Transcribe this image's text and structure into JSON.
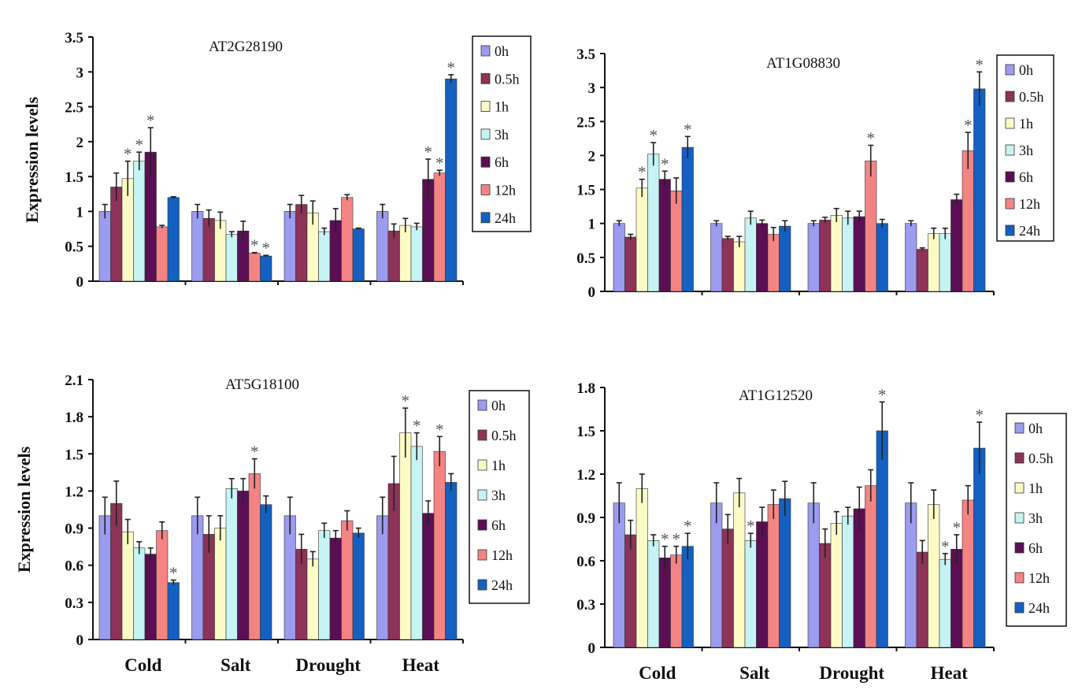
{
  "figure": {
    "panels": [
      "AT2G28190",
      "AT1G08830",
      "AT5G18100",
      "AT1G12520"
    ],
    "ylabel": "Expression levels",
    "categories": [
      "Cold",
      "Salt",
      "Drought",
      "Heat"
    ]
  },
  "series_colors": {
    "0h": "#9b9bf0",
    "0.5h": "#8c3357",
    "1h": "#fcfbc6",
    "3h": "#c6f3f3",
    "6h": "#5b0e54",
    "12h": "#f48484",
    "24h": "#1460c0"
  },
  "chart_data": [
    {
      "type": "bar",
      "title": "AT2G28190",
      "ylabel": "Expression levels",
      "xlabel": "",
      "categories": [
        "Cold",
        "Salt",
        "Drought",
        "Heat"
      ],
      "ylim": [
        0,
        3.5
      ],
      "yticks": [
        "0",
        "0.5",
        "1",
        "1.5",
        "2",
        "2.5",
        "3",
        "3.5"
      ],
      "legend": "top-right",
      "series": [
        {
          "name": "0h",
          "values": [
            1.0,
            1.0,
            1.0,
            1.0
          ],
          "errors": [
            0.1,
            0.1,
            0.1,
            0.1
          ],
          "significant": [
            false,
            false,
            false,
            false
          ]
        },
        {
          "name": "0.5h",
          "values": [
            1.35,
            0.9,
            1.1,
            0.72
          ],
          "errors": [
            0.2,
            0.12,
            0.13,
            0.1
          ],
          "significant": [
            false,
            false,
            false,
            false
          ]
        },
        {
          "name": "1h",
          "values": [
            1.47,
            0.87,
            0.98,
            0.8
          ],
          "errors": [
            0.25,
            0.12,
            0.17,
            0.1
          ],
          "significant": [
            true,
            false,
            false,
            false
          ]
        },
        {
          "name": "3h",
          "values": [
            1.72,
            0.67,
            0.71,
            0.78
          ],
          "errors": [
            0.13,
            0.04,
            0.05,
            0.05
          ],
          "significant": [
            true,
            false,
            false,
            false
          ]
        },
        {
          "name": "6h",
          "values": [
            1.85,
            0.72,
            0.87,
            1.46
          ],
          "errors": [
            0.35,
            0.14,
            0.17,
            0.29
          ],
          "significant": [
            true,
            false,
            false,
            true
          ]
        },
        {
          "name": "12h",
          "values": [
            0.78,
            0.4,
            1.2,
            1.55
          ],
          "errors": [
            0.02,
            0.01,
            0.04,
            0.04
          ],
          "significant": [
            false,
            true,
            false,
            true
          ]
        },
        {
          "name": "24h",
          "values": [
            1.2,
            0.36,
            0.75,
            2.9
          ],
          "errors": [
            0.01,
            0.01,
            0.01,
            0.06
          ],
          "significant": [
            false,
            true,
            false,
            true
          ]
        }
      ]
    },
    {
      "type": "bar",
      "title": "AT1G08830",
      "ylabel": "",
      "xlabel": "",
      "categories": [
        "Cold",
        "Salt",
        "Drought",
        "Heat"
      ],
      "ylim": [
        0,
        3.5
      ],
      "yticks": [
        "0",
        "0.5",
        "1",
        "1.5",
        "2",
        "2.5",
        "3",
        "3.5"
      ],
      "legend": "top-right",
      "series": [
        {
          "name": "0h",
          "values": [
            1.0,
            1.0,
            1.0,
            1.0
          ],
          "errors": [
            0.04,
            0.04,
            0.04,
            0.04
          ],
          "significant": [
            false,
            false,
            false,
            false
          ]
        },
        {
          "name": "0.5h",
          "values": [
            0.8,
            0.78,
            1.05,
            0.62
          ],
          "errors": [
            0.04,
            0.03,
            0.04,
            0.02
          ],
          "significant": [
            false,
            false,
            false,
            false
          ]
        },
        {
          "name": "1h",
          "values": [
            1.52,
            0.73,
            1.12,
            0.85
          ],
          "errors": [
            0.13,
            0.08,
            0.1,
            0.08
          ],
          "significant": [
            true,
            false,
            false,
            false
          ]
        },
        {
          "name": "3h",
          "values": [
            2.02,
            1.08,
            1.08,
            0.85
          ],
          "errors": [
            0.17,
            0.1,
            0.1,
            0.08
          ],
          "significant": [
            true,
            false,
            false,
            false
          ]
        },
        {
          "name": "6h",
          "values": [
            1.65,
            1.0,
            1.1,
            1.35
          ],
          "errors": [
            0.12,
            0.05,
            0.08,
            0.08
          ],
          "significant": [
            true,
            false,
            false,
            false
          ]
        },
        {
          "name": "12h",
          "values": [
            1.48,
            0.84,
            1.92,
            2.07
          ],
          "errors": [
            0.19,
            0.1,
            0.23,
            0.27
          ],
          "significant": [
            false,
            false,
            true,
            true
          ]
        },
        {
          "name": "24h",
          "values": [
            2.12,
            0.96,
            1.0,
            2.98
          ],
          "errors": [
            0.16,
            0.08,
            0.06,
            0.25
          ],
          "significant": [
            true,
            false,
            false,
            true
          ]
        }
      ]
    },
    {
      "type": "bar",
      "title": "AT5G18100",
      "ylabel": "Expression levels",
      "xlabel": "",
      "categories": [
        "Cold",
        "Salt",
        "Drought",
        "Heat"
      ],
      "ylim": [
        0,
        2.1
      ],
      "yticks": [
        "0",
        "0.3",
        "0.6",
        "0.9",
        "1.2",
        "1.5",
        "1.8",
        "2.1"
      ],
      "legend": "top-right",
      "series": [
        {
          "name": "0h",
          "values": [
            1.0,
            1.0,
            1.0,
            1.0
          ],
          "errors": [
            0.15,
            0.15,
            0.15,
            0.15
          ],
          "significant": [
            false,
            false,
            false,
            false
          ]
        },
        {
          "name": "0.5h",
          "values": [
            1.1,
            0.85,
            0.73,
            1.26
          ],
          "errors": [
            0.18,
            0.15,
            0.12,
            0.22
          ],
          "significant": [
            false,
            false,
            false,
            false
          ]
        },
        {
          "name": "1h",
          "values": [
            0.87,
            0.9,
            0.65,
            1.67
          ],
          "errors": [
            0.1,
            0.1,
            0.06,
            0.2
          ],
          "significant": [
            false,
            false,
            false,
            true
          ]
        },
        {
          "name": "3h",
          "values": [
            0.74,
            1.22,
            0.88,
            1.56
          ],
          "errors": [
            0.05,
            0.08,
            0.06,
            0.11
          ],
          "significant": [
            false,
            false,
            false,
            true
          ]
        },
        {
          "name": "6h",
          "values": [
            0.69,
            1.2,
            0.82,
            1.02
          ],
          "errors": [
            0.05,
            0.1,
            0.06,
            0.1
          ],
          "significant": [
            false,
            false,
            false,
            false
          ]
        },
        {
          "name": "12h",
          "values": [
            0.88,
            1.34,
            0.96,
            1.52
          ],
          "errors": [
            0.07,
            0.12,
            0.08,
            0.12
          ],
          "significant": [
            false,
            true,
            false,
            true
          ]
        },
        {
          "name": "24h",
          "values": [
            0.46,
            1.09,
            0.86,
            1.27
          ],
          "errors": [
            0.02,
            0.07,
            0.04,
            0.07
          ],
          "significant": [
            true,
            false,
            false,
            false
          ]
        }
      ]
    },
    {
      "type": "bar",
      "title": "AT1G12520",
      "ylabel": "",
      "xlabel": "",
      "categories": [
        "Cold",
        "Salt",
        "Drought",
        "Heat"
      ],
      "ylim": [
        0,
        1.8
      ],
      "yticks": [
        "0",
        "0.3",
        "0.6",
        "0.9",
        "1.2",
        "1.5",
        "1.8"
      ],
      "legend": "right",
      "series": [
        {
          "name": "0h",
          "values": [
            1.0,
            1.0,
            1.0,
            1.0
          ],
          "errors": [
            0.14,
            0.14,
            0.14,
            0.14
          ],
          "significant": [
            false,
            false,
            false,
            false
          ]
        },
        {
          "name": "0.5h",
          "values": [
            0.78,
            0.82,
            0.72,
            0.66
          ],
          "errors": [
            0.1,
            0.1,
            0.1,
            0.08
          ],
          "significant": [
            false,
            false,
            false,
            false
          ]
        },
        {
          "name": "1h",
          "values": [
            1.1,
            1.07,
            0.86,
            0.99
          ],
          "errors": [
            0.1,
            0.1,
            0.08,
            0.1
          ],
          "significant": [
            false,
            false,
            false,
            false
          ]
        },
        {
          "name": "3h",
          "values": [
            0.74,
            0.74,
            0.91,
            0.61
          ],
          "errors": [
            0.04,
            0.05,
            0.06,
            0.04
          ],
          "significant": [
            false,
            true,
            false,
            true
          ]
        },
        {
          "name": "6h",
          "values": [
            0.62,
            0.87,
            0.96,
            0.68
          ],
          "errors": [
            0.08,
            0.1,
            0.15,
            0.1
          ],
          "significant": [
            true,
            false,
            false,
            true
          ]
        },
        {
          "name": "12h",
          "values": [
            0.64,
            0.99,
            1.12,
            1.02
          ],
          "errors": [
            0.06,
            0.1,
            0.11,
            0.1
          ],
          "significant": [
            true,
            false,
            false,
            false
          ]
        },
        {
          "name": "24h",
          "values": [
            0.7,
            1.03,
            1.5,
            1.38
          ],
          "errors": [
            0.09,
            0.12,
            0.2,
            0.18
          ],
          "significant": [
            true,
            false,
            true,
            true
          ]
        }
      ]
    }
  ]
}
